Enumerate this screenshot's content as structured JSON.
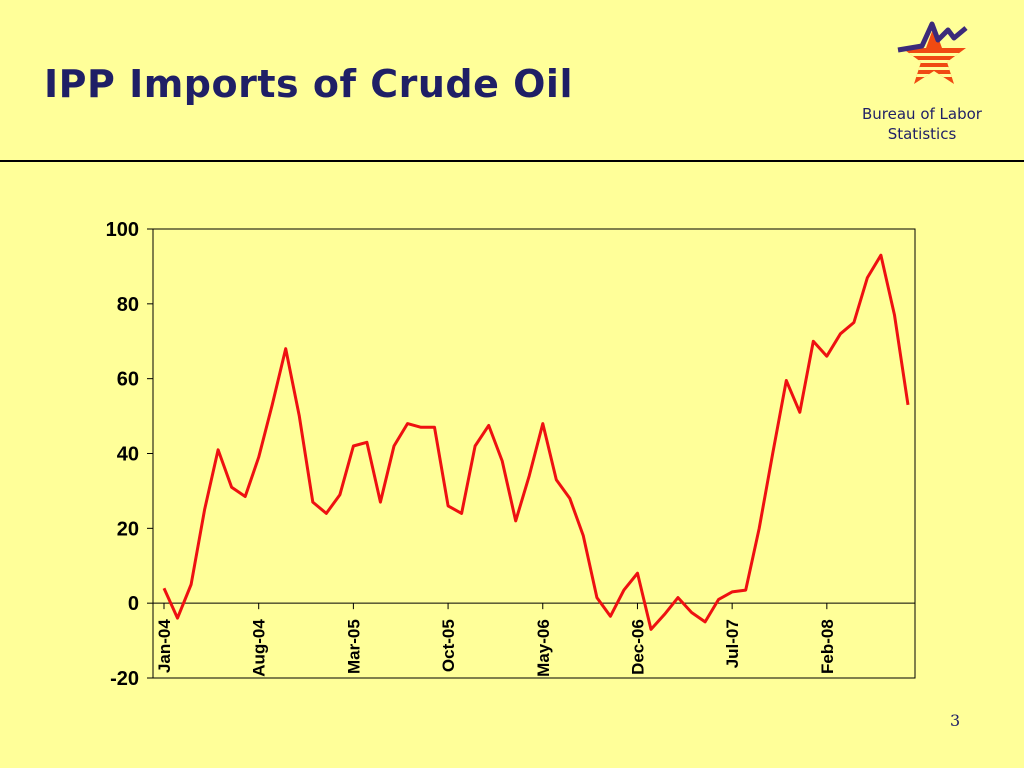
{
  "slide": {
    "title": "IPP Imports of Crude Oil",
    "page_number": "3"
  },
  "logo": {
    "icon": "bls-star-logo-icon",
    "org_line1": "Bureau of Labor",
    "org_line2": "Statistics"
  },
  "colors": {
    "background": "#ffff99",
    "title": "#1f1f66",
    "series": "#ee1111",
    "logo_star": "#f04a12",
    "logo_wave": "#3b2a7a"
  },
  "chart_data": {
    "type": "line",
    "title": "",
    "xlabel": "",
    "ylabel": "",
    "ylim": [
      -20,
      100
    ],
    "yticks": [
      100,
      80,
      60,
      40,
      20,
      0,
      -20
    ],
    "xtick_labels": [
      "Jan-04",
      "Aug-04",
      "Mar-05",
      "Oct-05",
      "May-06",
      "Dec-06",
      "Jul-07",
      "Feb-08"
    ],
    "grid": false,
    "legend": "none",
    "series": [
      {
        "values": [
          4,
          -4,
          5,
          25,
          41,
          31,
          28.5,
          39,
          53,
          68,
          50,
          27,
          24,
          29,
          42,
          43,
          27,
          42,
          48,
          47,
          47,
          26,
          24,
          42,
          47.5,
          38,
          22,
          34,
          48,
          33,
          28,
          18,
          1.5,
          -3.5,
          3.5,
          8,
          -7,
          -3,
          1.5,
          -2.5,
          -5,
          1,
          3,
          3.5,
          20,
          40,
          59.5,
          51,
          70,
          66,
          72,
          75,
          87,
          93,
          77,
          53
        ]
      }
    ]
  }
}
